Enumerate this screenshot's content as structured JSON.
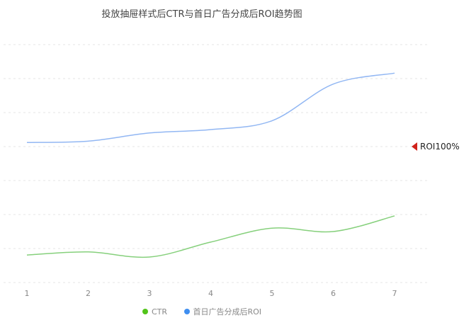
{
  "chart_data": {
    "type": "line",
    "title": "投放抽屉样式后CTR与首日广告分成后ROI趋势图",
    "x": [
      "1",
      "2",
      "3",
      "4",
      "5",
      "6",
      "7"
    ],
    "grid": true,
    "smooth": true,
    "legend_position": "bottom",
    "series": [
      {
        "name": "CTR",
        "color": "#86d07c",
        "legend_color": "#52c41a",
        "values": [
          0.81,
          0.9,
          0.75,
          1.19,
          1.6,
          1.5,
          1.96
        ],
        "axis_range": [
          0,
          7
        ]
      },
      {
        "name": "首日广告分成后ROI",
        "color": "#92b7f3",
        "legend_color": "#3f8ef0",
        "values": [
          103,
          104,
          110,
          112.5,
          119,
          146,
          154
        ],
        "axis_range": [
          0,
          175
        ]
      }
    ],
    "mark_line": {
      "series": "首日广告分成后ROI",
      "value": 100,
      "label": "ROI100%",
      "color": "#d0231b"
    }
  }
}
